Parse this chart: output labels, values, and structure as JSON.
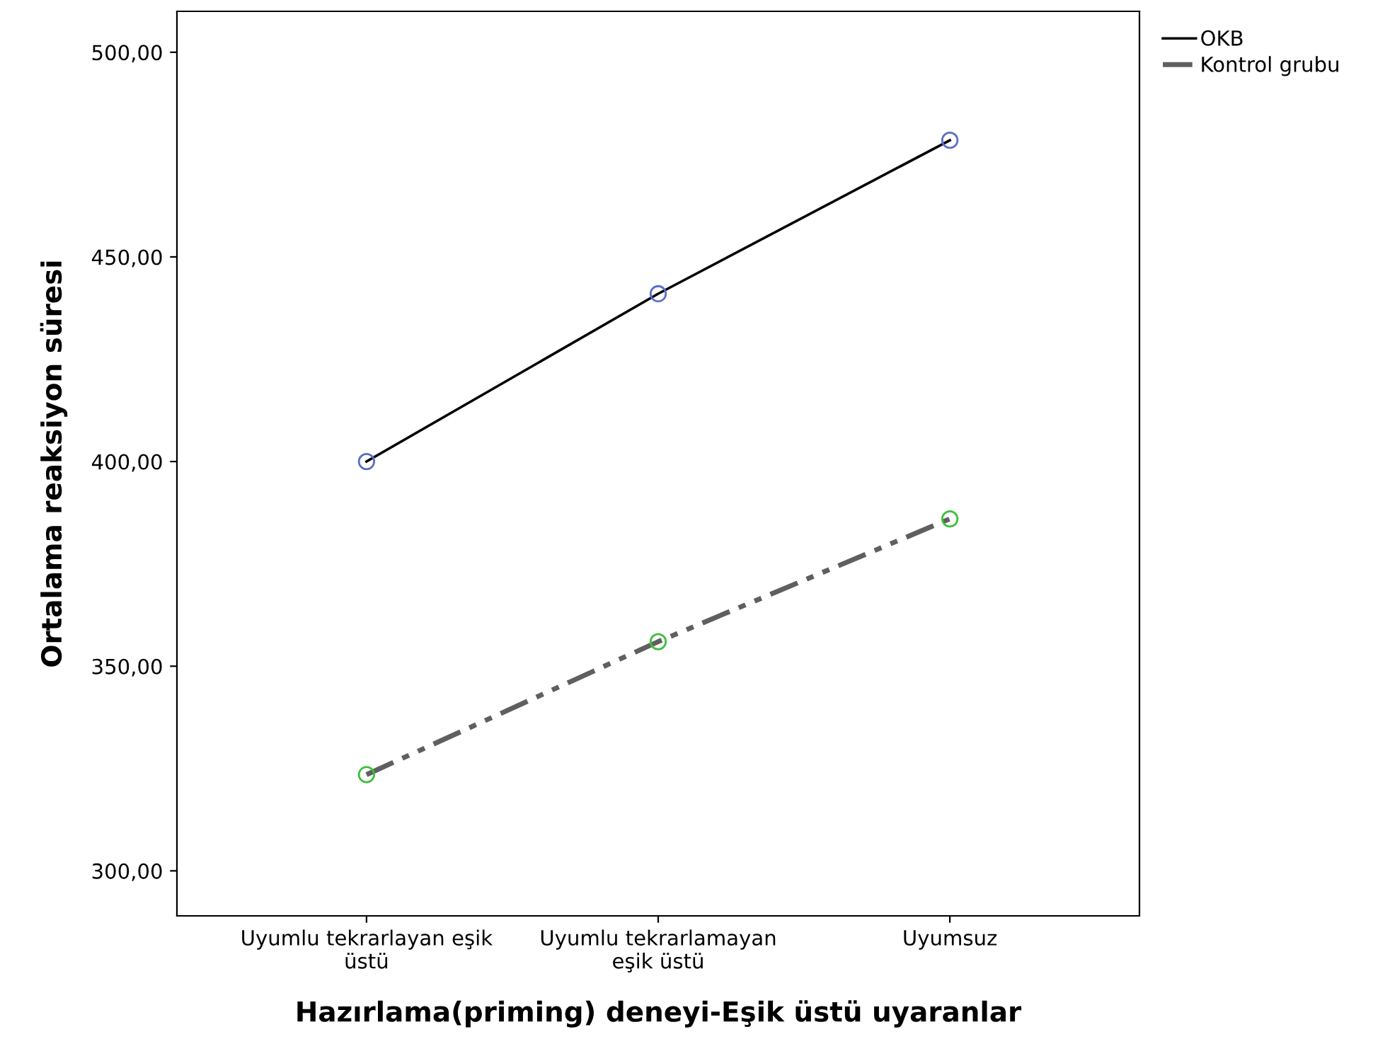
{
  "chart_data": {
    "type": "line",
    "xlabel": "Hazırlama(priming) deneyi-Eşik üstü uyaranlar",
    "ylabel": "Ortalama reaksiyon süresi",
    "categories": [
      "Uyumlu tekrarlayan eşik\nüstü",
      "Uyumlu tekrarlamayan\neşik üstü",
      "Uyumsuz"
    ],
    "series": [
      {
        "name": "OKB",
        "color": "#000000",
        "colors": [
          "#5a6ec8",
          "#5a6ec8",
          "#5a6ec8"
        ],
        "line_style": "solid",
        "values": [
          400,
          441,
          478.5
        ]
      },
      {
        "name": "Kontrol grubu",
        "color": "#5f5f5f",
        "colors": [
          "#3cc03c",
          "#3cc03c",
          "#3cc03c"
        ],
        "line_style": "dashed",
        "values": [
          323.5,
          356,
          386
        ]
      }
    ],
    "ylim": [
      289,
      510
    ],
    "yticks": [
      {
        "value": 300,
        "label": "300,00"
      },
      {
        "value": 350,
        "label": "350,00"
      },
      {
        "value": 400,
        "label": "400,00"
      },
      {
        "value": 450,
        "label": "450,00"
      },
      {
        "value": 500,
        "label": "500,00"
      }
    ],
    "marker": "circle",
    "grid": false,
    "legend": "top right"
  }
}
